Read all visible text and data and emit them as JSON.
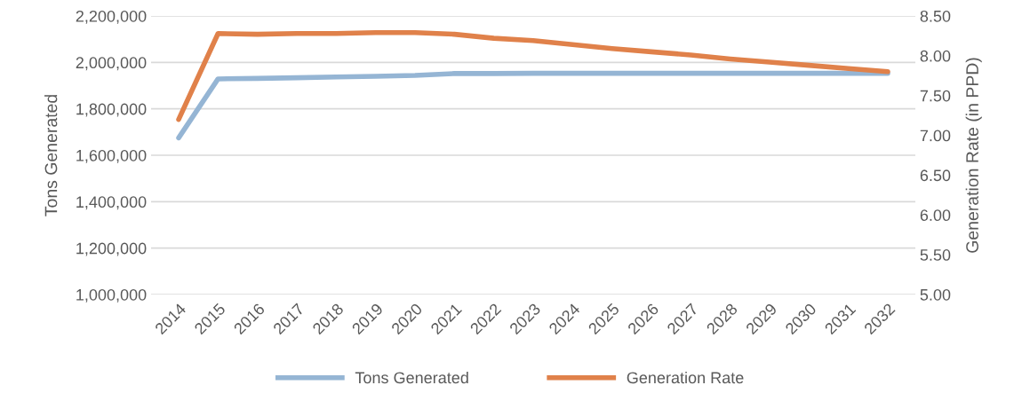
{
  "chart_data": {
    "type": "line",
    "categories": [
      "2014",
      "2015",
      "2016",
      "2017",
      "2018",
      "2019",
      "2020",
      "2021",
      "2022",
      "2023",
      "2024",
      "2025",
      "2026",
      "2027",
      "2028",
      "2029",
      "2030",
      "2031",
      "2032"
    ],
    "ylabel": "Tons Generated",
    "y2label": "Generation Rate (in PPD)",
    "series": [
      {
        "name": "Tons Generated",
        "color": "#95b5d4",
        "values": [
          1675000,
          1929000,
          1931000,
          1934000,
          1937000,
          1940000,
          1944000,
          1952000,
          1952000,
          1953000,
          1953000,
          1953000,
          1953000,
          1953000,
          1953000,
          1953000,
          1953000,
          1953000,
          1953000
        ]
      },
      {
        "name": "Generation Rate",
        "color": "#e0814a",
        "axis": "y2",
        "values": [
          7.2,
          8.28,
          8.27,
          8.28,
          8.28,
          8.29,
          8.29,
          8.27,
          8.22,
          8.19,
          8.14,
          8.09,
          8.05,
          8.01,
          7.96,
          7.92,
          7.88,
          7.84,
          7.8
        ]
      }
    ],
    "ylim": [
      1000000,
      2200000
    ],
    "yticks": [
      {
        "value": 1000000,
        "label": "1,000,000"
      },
      {
        "value": 1200000,
        "label": "1,200,000"
      },
      {
        "value": 1400000,
        "label": "1,400,000"
      },
      {
        "value": 1600000,
        "label": "1,600,000"
      },
      {
        "value": 1800000,
        "label": "1,800,000"
      },
      {
        "value": 2000000,
        "label": "2,000,000"
      },
      {
        "value": 2200000,
        "label": "2,200,000"
      }
    ],
    "y2lim": [
      5.0,
      8.5
    ],
    "y2ticks": [
      {
        "value": 5.0,
        "label": "5.00"
      },
      {
        "value": 5.5,
        "label": "5.50"
      },
      {
        "value": 6.0,
        "label": "6.00"
      },
      {
        "value": 6.5,
        "label": "6.50"
      },
      {
        "value": 7.0,
        "label": "7.00"
      },
      {
        "value": 7.5,
        "label": "7.50"
      },
      {
        "value": 8.0,
        "label": "8.00"
      },
      {
        "value": 8.5,
        "label": "8.50"
      }
    ],
    "grid": "y",
    "legend": "bottom",
    "marker": "none",
    "line_style": "solid"
  }
}
